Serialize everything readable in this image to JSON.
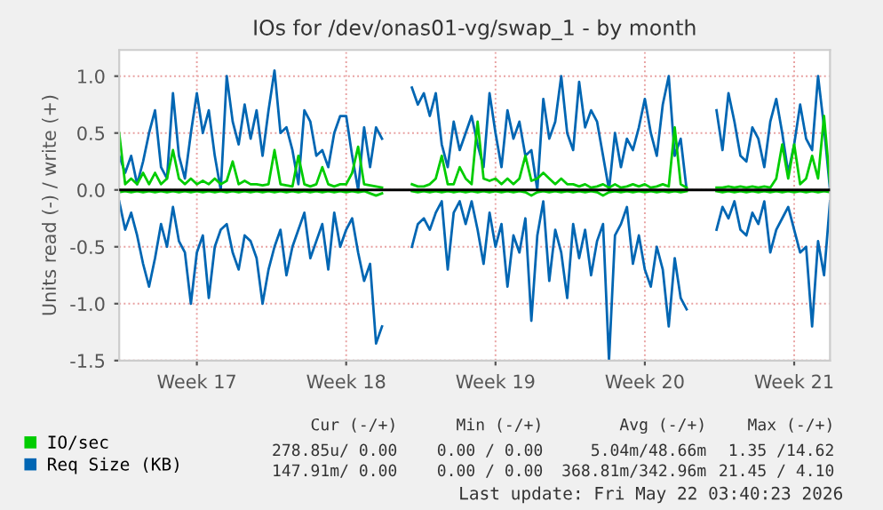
{
  "chart_data": {
    "type": "line",
    "title": "IOs for /dev/onas01-vg/swap_1 - by month",
    "ylabel": "Units read (-) / write (+)",
    "categories": [
      null,
      null,
      null,
      null,
      null,
      null,
      null,
      null,
      null,
      null,
      null,
      null,
      null,
      "Week 17",
      null,
      null,
      null,
      null,
      null,
      null,
      null,
      null,
      null,
      null,
      null,
      null,
      null,
      null,
      null,
      null,
      null,
      null,
      null,
      null,
      null,
      null,
      null,
      null,
      "Week 18",
      null,
      null,
      null,
      null,
      null,
      null,
      null,
      null,
      null,
      null,
      null,
      null,
      null,
      null,
      null,
      null,
      null,
      null,
      null,
      null,
      null,
      null,
      null,
      null,
      "Week 19",
      null,
      null,
      null,
      null,
      null,
      null,
      null,
      null,
      null,
      null,
      null,
      null,
      null,
      null,
      null,
      null,
      null,
      null,
      null,
      null,
      null,
      null,
      null,
      null,
      "Week 20",
      null,
      null,
      null,
      null,
      null,
      null,
      null,
      null,
      null,
      null,
      null,
      null,
      null,
      null,
      null,
      null,
      null,
      null,
      null,
      null,
      null,
      null,
      null,
      null,
      "Week 21",
      null,
      null,
      null,
      null,
      null,
      null
    ],
    "series": [
      {
        "color": "#0066b3",
        "values": [
          -0.1,
          -0.35,
          -0.2,
          -0.4,
          -0.65,
          -0.85,
          -0.6,
          -0.3,
          -0.5,
          -0.15,
          -0.45,
          -0.55,
          -1.0,
          -0.55,
          -0.4,
          -0.95,
          -0.5,
          -0.35,
          -0.3,
          -0.55,
          -0.7,
          -0.4,
          -0.45,
          -0.6,
          -1.0,
          -0.7,
          -0.5,
          -0.35,
          -0.75,
          -0.5,
          -0.35,
          -0.2,
          -0.6,
          -0.45,
          -0.3,
          -0.7,
          -0.2,
          -0.5,
          -0.35,
          -0.25,
          -0.55,
          -0.8,
          -0.65,
          -1.35,
          -1.2,
          null,
          null,
          null,
          null,
          -0.5,
          -0.3,
          -0.25,
          -0.35,
          -0.2,
          -0.1,
          -0.7,
          -0.2,
          -0.1,
          -0.3,
          -0.1,
          -0.35,
          -0.65,
          -0.2,
          -0.5,
          -0.3,
          -0.85,
          -0.4,
          -0.55,
          -0.25,
          -1.15,
          -0.4,
          -0.1,
          -0.8,
          -0.35,
          -0.55,
          -0.95,
          -0.3,
          -0.6,
          -0.35,
          -0.75,
          -0.45,
          -0.3,
          -1.5,
          -0.4,
          -0.3,
          -0.15,
          -0.65,
          -0.4,
          -0.7,
          -0.85,
          -0.5,
          -0.7,
          -1.2,
          -0.6,
          -0.95,
          -1.05,
          null,
          null,
          null,
          null,
          -0.35,
          -0.15,
          -0.25,
          -0.1,
          -0.35,
          -0.4,
          -0.2,
          -0.3,
          -0.1,
          -0.55,
          -0.35,
          -0.25,
          -0.15,
          -0.35,
          -0.55,
          -0.5,
          -1.2,
          -0.45,
          -0.75,
          -0.1
        ]
      },
      {
        "name": "Req Size (KB)",
        "color": "#0066b3",
        "values": [
          0.3,
          0.15,
          0.3,
          0.05,
          0.25,
          0.5,
          0.7,
          0.2,
          0.1,
          0.85,
          0.3,
          0.1,
          0.5,
          0.85,
          0.5,
          0.7,
          0.3,
          0.0,
          1.0,
          0.6,
          0.4,
          0.75,
          0.45,
          0.7,
          0.3,
          0.7,
          1.05,
          0.5,
          0.55,
          0.35,
          0.05,
          0.7,
          0.6,
          0.3,
          0.35,
          0.2,
          0.5,
          0.65,
          0.65,
          0.3,
          0.0,
          0.55,
          0.2,
          0.55,
          0.45,
          null,
          null,
          null,
          null,
          0.9,
          0.75,
          0.85,
          0.65,
          0.85,
          0.4,
          0.2,
          0.6,
          0.35,
          0.5,
          0.65,
          0.4,
          0.2,
          0.85,
          0.5,
          0.2,
          0.7,
          0.45,
          0.6,
          0.3,
          0.35,
          0.0,
          0.8,
          0.45,
          0.6,
          1.0,
          0.5,
          0.35,
          0.95,
          0.55,
          0.7,
          0.6,
          0.3,
          0.0,
          0.5,
          0.2,
          0.45,
          0.35,
          0.55,
          0.8,
          0.5,
          0.3,
          0.75,
          1.0,
          0.3,
          0.45,
          0.0,
          null,
          null,
          null,
          null,
          0.7,
          0.35,
          0.85,
          0.6,
          0.3,
          0.25,
          0.55,
          0.45,
          0.2,
          0.6,
          0.8,
          0.5,
          0.15,
          0.4,
          0.75,
          0.45,
          0.35,
          1.0,
          0.55,
          0.0
        ]
      },
      {
        "color": "#00cc00",
        "values": [
          -0.02,
          -0.01,
          -0.02,
          -0.01,
          -0.02,
          -0.01,
          -0.02,
          -0.01,
          -0.02,
          -0.01,
          -0.02,
          -0.01,
          -0.02,
          -0.01,
          -0.02,
          -0.01,
          -0.02,
          -0.01,
          -0.02,
          -0.01,
          -0.02,
          -0.01,
          -0.02,
          -0.01,
          -0.02,
          -0.01,
          -0.02,
          -0.01,
          -0.02,
          -0.01,
          -0.02,
          -0.01,
          -0.02,
          -0.01,
          -0.02,
          -0.01,
          -0.02,
          -0.01,
          -0.02,
          -0.01,
          -0.02,
          -0.01,
          -0.03,
          -0.05,
          -0.03,
          null,
          null,
          null,
          null,
          -0.01,
          -0.02,
          -0.01,
          -0.02,
          -0.01,
          -0.02,
          -0.01,
          -0.02,
          -0.01,
          -0.02,
          -0.01,
          -0.02,
          -0.01,
          -0.02,
          -0.01,
          -0.02,
          -0.01,
          -0.02,
          -0.01,
          -0.02,
          -0.05,
          -0.02,
          -0.01,
          -0.02,
          -0.01,
          -0.02,
          -0.01,
          -0.02,
          -0.01,
          -0.02,
          -0.01,
          -0.02,
          -0.05,
          -0.02,
          -0.01,
          -0.02,
          -0.01,
          -0.02,
          -0.01,
          -0.02,
          -0.01,
          -0.02,
          -0.01,
          -0.02,
          -0.01,
          -0.02,
          -0.01,
          null,
          null,
          null,
          null,
          -0.01,
          -0.02,
          -0.01,
          -0.02,
          -0.01,
          -0.02,
          -0.01,
          -0.02,
          -0.01,
          -0.02,
          -0.01,
          -0.02,
          -0.01,
          -0.02,
          -0.01,
          -0.02,
          -0.01,
          -0.02,
          -0.01,
          -0.02
        ]
      },
      {
        "name": "IO/sec",
        "color": "#00cc00",
        "values": [
          0.5,
          0.05,
          0.1,
          0.05,
          0.15,
          0.05,
          0.15,
          0.05,
          0.1,
          0.35,
          0.1,
          0.05,
          0.1,
          0.05,
          0.08,
          0.05,
          0.1,
          0.05,
          0.08,
          0.25,
          0.05,
          0.08,
          0.05,
          0.05,
          0.04,
          0.05,
          0.35,
          0.05,
          0.04,
          0.03,
          0.3,
          0.05,
          0.03,
          0.05,
          0.2,
          0.05,
          0.03,
          0.05,
          0.05,
          0.15,
          0.38,
          0.05,
          0.04,
          0.03,
          0.02,
          null,
          null,
          null,
          null,
          0.05,
          0.03,
          0.03,
          0.05,
          0.1,
          0.3,
          0.05,
          0.05,
          0.2,
          0.1,
          0.05,
          0.6,
          0.1,
          0.08,
          0.1,
          0.05,
          0.1,
          0.05,
          0.1,
          0.3,
          0.08,
          0.1,
          0.15,
          0.1,
          0.05,
          0.1,
          0.05,
          0.05,
          0.03,
          0.05,
          0.02,
          0.03,
          0.05,
          0.02,
          0.05,
          0.02,
          0.03,
          0.05,
          0.03,
          0.05,
          0.02,
          0.03,
          0.05,
          0.03,
          0.55,
          0.05,
          0.02,
          null,
          null,
          null,
          null,
          0.02,
          0.02,
          0.03,
          0.02,
          0.03,
          0.02,
          0.03,
          0.02,
          0.03,
          0.02,
          0.1,
          0.4,
          0.1,
          0.4,
          0.05,
          0.1,
          0.3,
          0.1,
          0.65,
          0.05
        ]
      }
    ],
    "ylim": [
      -1.5,
      1.23
    ],
    "yticks": [
      {
        "value": -1.5,
        "label": "-1.5"
      },
      {
        "value": -1.0,
        "label": "-1.0"
      },
      {
        "value": -0.5,
        "label": "-0.5"
      },
      {
        "value": 0,
        "label": "0.0"
      },
      {
        "value": 0.5,
        "label": "0.5"
      },
      {
        "value": 1.0,
        "label": "1.0"
      }
    ],
    "ref_lines": [
      {
        "axis": "y",
        "value": 0,
        "color": "#000000"
      }
    ],
    "grid": true,
    "legend": "bottom left",
    "marker": "none",
    "line_style": "solid",
    "annotations": [
      "Cur (-/+)",
      "Min (-/+)",
      "Avg (-/+)",
      "Max (-/+)",
      "278.85u/ 0.00",
      "0.00 / 0.00",
      "5.04m/48.66m",
      "1.35 /14.62",
      "147.91m/ 0.00",
      "0.00 / 0.00",
      "368.81m/342.96m",
      "21.45 / 4.10",
      "Last update: Fri May 22 03:40:23 2026"
    ]
  }
}
